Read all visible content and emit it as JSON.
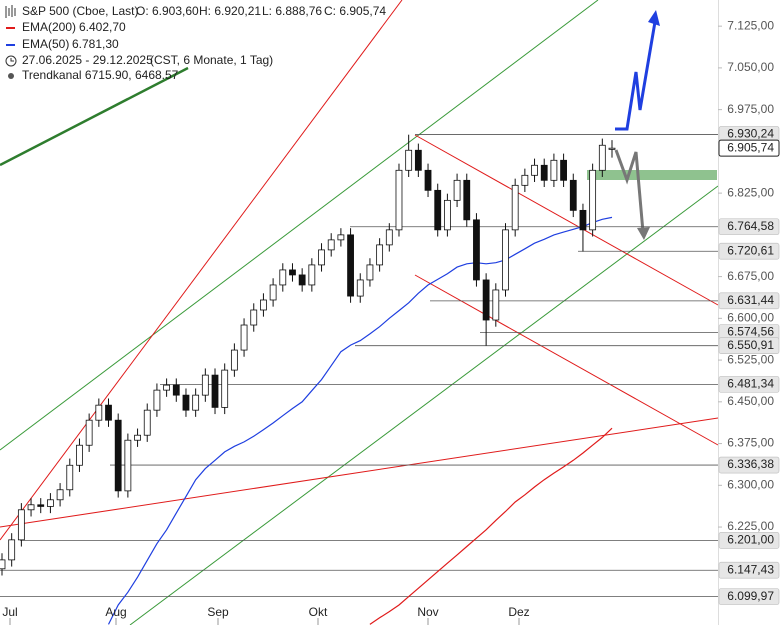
{
  "chart_data": {
    "type": "candlestick",
    "title": "S&P 500 (Cboe, Last)",
    "ohlc_text": [
      "O: 6.903,60",
      "H: 6.920,21",
      "L: 6.888,76",
      "C: 6.905,74"
    ],
    "date_range": "27.06.2025 - 29.12.2025",
    "period": "(CST, 6 Monate, 1 Tag)",
    "channel": "Trendkanal 6715.90, 6468.57",
    "months": [
      "Jul",
      "Aug",
      "Sep",
      "Okt",
      "Nov",
      "Dez"
    ],
    "ylim": [
      6049,
      7172
    ],
    "yticks": [
      {
        "value": 7125,
        "label": "7.125,00"
      },
      {
        "value": 7050,
        "label": "7.050,00"
      },
      {
        "value": 6975,
        "label": "6.975,00"
      },
      {
        "value": 6825,
        "label": "6.825,00"
      },
      {
        "value": 6675,
        "label": "6.675,00"
      },
      {
        "value": 6600,
        "label": "6.600,00"
      },
      {
        "value": 6525,
        "label": "6.525,00"
      },
      {
        "value": 6450,
        "label": "6.450,00"
      },
      {
        "value": 6375,
        "label": "6.375,00"
      },
      {
        "value": 6300,
        "label": "6.300,00"
      },
      {
        "value": 6225,
        "label": "6.225,00"
      }
    ],
    "levels": [
      {
        "value": 6930.24,
        "label": "6.930,24"
      },
      {
        "value": 6905.74,
        "label": "6.905,74"
      },
      {
        "value": 6764.58,
        "label": "6.764,58"
      },
      {
        "value": 6720.61,
        "label": "6.720,61"
      },
      {
        "value": 6631.44,
        "label": "6.631,44"
      },
      {
        "value": 6574.56,
        "label": "6.574,56"
      },
      {
        "value": 6550.91,
        "label": "6.550,91"
      },
      {
        "value": 6481.34,
        "label": "6.481,34"
      },
      {
        "value": 6336.38,
        "label": "6.336,38"
      },
      {
        "value": 6201.0,
        "label": "6.201,00"
      },
      {
        "value": 6147.43,
        "label": "6.147,43"
      },
      {
        "value": 6099.97,
        "label": "6.099,97"
      }
    ],
    "open": [
      6150,
      6166,
      6202,
      6256,
      6265,
      6262,
      6274,
      6292,
      6336,
      6372,
      6417,
      6444,
      6417,
      6290,
      6381,
      6390,
      6435,
      6471,
      6480,
      6462,
      6435,
      6462,
      6498,
      6440,
      6507,
      6543,
      6588,
      6615,
      6633,
      6660,
      6687,
      6678,
      6660,
      6696,
      6723,
      6741,
      6750,
      6640,
      6669,
      6696,
      6732,
      6759,
      6866,
      6902,
      6866,
      6830,
      6759,
      6812,
      6848,
      6777,
      6669,
      6597,
      6651,
      6759,
      6839,
      6857,
      6875,
      6848,
      6884,
      6848,
      6794,
      6759,
      6866,
      6903.6
    ],
    "high": [
      6178,
      6214,
      6268,
      6277,
      6277,
      6286,
      6304,
      6348,
      6384,
      6429,
      6456,
      6456,
      6429,
      6393,
      6402,
      6447,
      6483,
      6492,
      6492,
      6474,
      6474,
      6510,
      6510,
      6519,
      6555,
      6600,
      6627,
      6645,
      6672,
      6699,
      6699,
      6690,
      6708,
      6735,
      6753,
      6762,
      6762,
      6681,
      6708,
      6744,
      6771,
      6878,
      6930,
      6914,
      6878,
      6842,
      6824,
      6860,
      6860,
      6789,
      6681,
      6663,
      6771,
      6851,
      6869,
      6887,
      6887,
      6896,
      6896,
      6860,
      6806,
      6878,
      6923,
      6920.21
    ],
    "low": [
      6138,
      6154,
      6190,
      6244,
      6250,
      6250,
      6262,
      6280,
      6324,
      6360,
      6405,
      6405,
      6278,
      6278,
      6369,
      6378,
      6423,
      6459,
      6450,
      6423,
      6423,
      6450,
      6428,
      6428,
      6495,
      6531,
      6576,
      6603,
      6621,
      6648,
      6666,
      6648,
      6648,
      6684,
      6711,
      6729,
      6628,
      6628,
      6657,
      6684,
      6720,
      6747,
      6854,
      6854,
      6818,
      6747,
      6747,
      6800,
      6765,
      6657,
      6551,
      6585,
      6639,
      6747,
      6827,
      6845,
      6836,
      6836,
      6836,
      6782,
      6720,
      6747,
      6854,
      6888.76
    ],
    "close": [
      6166,
      6202,
      6256,
      6265,
      6262,
      6274,
      6292,
      6336,
      6372,
      6417,
      6444,
      6417,
      6290,
      6381,
      6390,
      6435,
      6471,
      6480,
      6462,
      6435,
      6462,
      6498,
      6440,
      6507,
      6543,
      6588,
      6615,
      6633,
      6660,
      6687,
      6678,
      6660,
      6696,
      6723,
      6741,
      6750,
      6640,
      6669,
      6696,
      6732,
      6759,
      6866,
      6902,
      6866,
      6830,
      6759,
      6812,
      6848,
      6777,
      6669,
      6597,
      6651,
      6759,
      6839,
      6857,
      6875,
      6848,
      6884,
      6848,
      6794,
      6759,
      6866,
      6911,
      6905.74
    ],
    "series": [
      {
        "name": "EMA(200)",
        "color": "#e01b1b",
        "last_label": "6.402,70",
        "values": [
          null,
          null,
          null,
          null,
          null,
          null,
          null,
          null,
          null,
          null,
          null,
          null,
          null,
          null,
          null,
          null,
          null,
          null,
          null,
          null,
          null,
          null,
          null,
          null,
          null,
          null,
          null,
          null,
          null,
          null,
          null,
          null,
          null,
          null,
          null,
          null,
          null,
          null,
          6050,
          6062,
          6073,
          6085,
          6100,
          6115,
          6130,
          6145,
          6160,
          6175,
          6190,
          6205,
          6220,
          6237,
          6253,
          6270,
          6283,
          6297,
          6310,
          6322,
          6333,
          6345,
          6358,
          6372,
          6386,
          6402.7
        ]
      },
      {
        "name": "EMA(50)",
        "color": "#1f3fe0",
        "last_label": "6.781,30",
        "values": [
          null,
          null,
          null,
          null,
          null,
          null,
          null,
          null,
          null,
          null,
          null,
          6050,
          6085,
          6108,
          6135,
          6165,
          6195,
          6220,
          6250,
          6280,
          6310,
          6330,
          6345,
          6360,
          6370,
          6378,
          6388,
          6400,
          6412,
          6425,
          6438,
          6450,
          6470,
          6490,
          6515,
          6540,
          6552,
          6560,
          6572,
          6585,
          6600,
          6614,
          6628,
          6645,
          6660,
          6670,
          6680,
          6692,
          6698,
          6700,
          6698,
          6700,
          6705,
          6715,
          6725,
          6735,
          6742,
          6750,
          6755,
          6760,
          6765,
          6772,
          6778,
          6781.3
        ]
      }
    ]
  }
}
